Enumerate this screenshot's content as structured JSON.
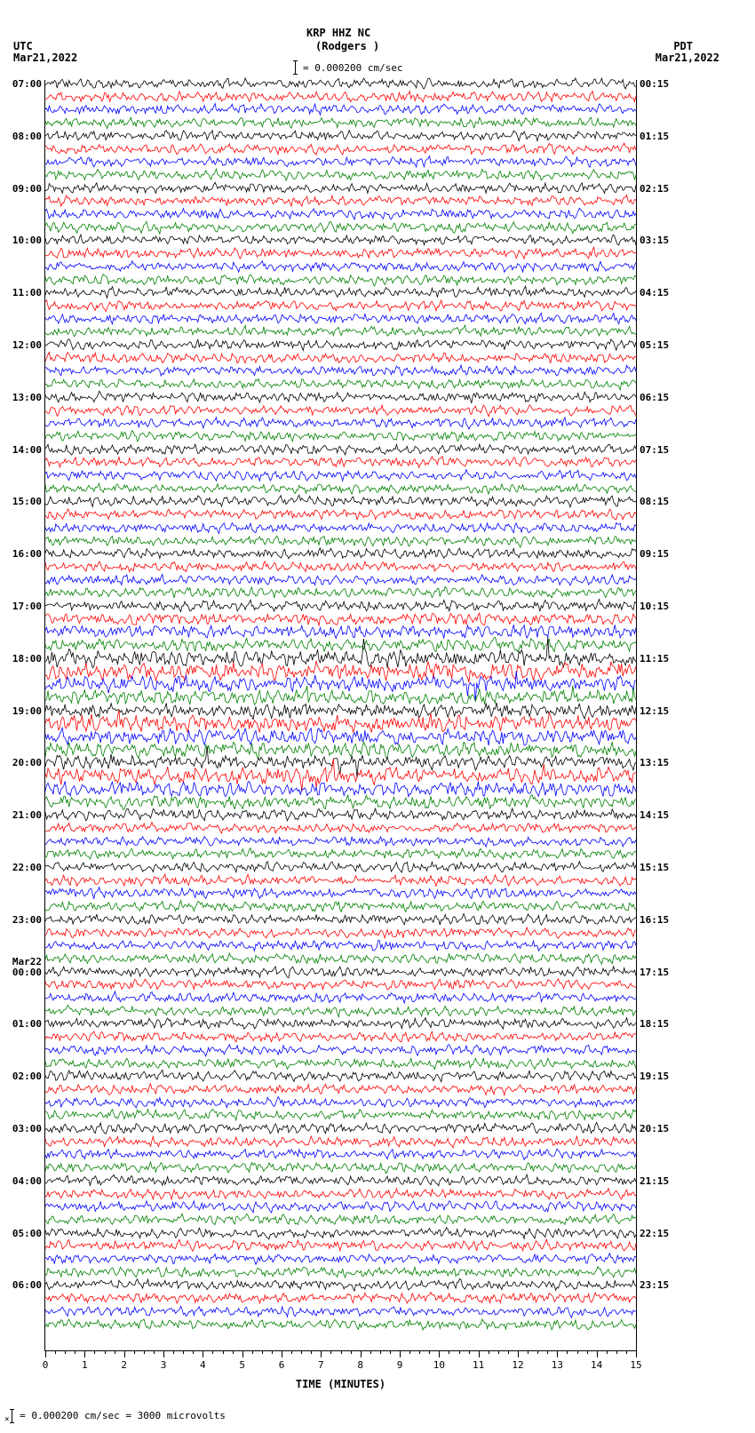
{
  "title": {
    "station": "KRP HHZ NC",
    "location": "(Rodgers )",
    "left_tz": "UTC",
    "left_date": "Mar21,2022",
    "right_tz": "PDT",
    "right_date": "Mar21,2022"
  },
  "scale": {
    "label": "= 0.000200 cm/sec"
  },
  "footer": {
    "text": "= 0.000200 cm/sec =   3000 microvolts"
  },
  "plot": {
    "x_axis_title": "TIME (MINUTES)",
    "x_min": 0,
    "x_max": 15,
    "x_tick_step": 1,
    "x_minor_per_major": 4,
    "n_hours": 24,
    "traces_per_hour": 4,
    "colors": [
      "#000000",
      "#ff0000",
      "#0000ff",
      "#008000"
    ],
    "background": "#ffffff",
    "amplitude_baseline": 6,
    "row_spacing": 14.7
  },
  "left_labels": [
    {
      "row": 0,
      "text": "07:00"
    },
    {
      "row": 4,
      "text": "08:00"
    },
    {
      "row": 8,
      "text": "09:00"
    },
    {
      "row": 12,
      "text": "10:00"
    },
    {
      "row": 16,
      "text": "11:00"
    },
    {
      "row": 20,
      "text": "12:00"
    },
    {
      "row": 24,
      "text": "13:00"
    },
    {
      "row": 28,
      "text": "14:00"
    },
    {
      "row": 32,
      "text": "15:00"
    },
    {
      "row": 36,
      "text": "16:00"
    },
    {
      "row": 40,
      "text": "17:00"
    },
    {
      "row": 44,
      "text": "18:00"
    },
    {
      "row": 48,
      "text": "19:00"
    },
    {
      "row": 52,
      "text": "20:00"
    },
    {
      "row": 56,
      "text": "21:00"
    },
    {
      "row": 60,
      "text": "22:00"
    },
    {
      "row": 64,
      "text": "23:00"
    },
    {
      "row": 68,
      "text": "00:00",
      "date": "Mar22"
    },
    {
      "row": 72,
      "text": "01:00"
    },
    {
      "row": 76,
      "text": "02:00"
    },
    {
      "row": 80,
      "text": "03:00"
    },
    {
      "row": 84,
      "text": "04:00"
    },
    {
      "row": 88,
      "text": "05:00"
    },
    {
      "row": 92,
      "text": "06:00"
    }
  ],
  "right_labels": [
    {
      "row": 0,
      "text": "00:15"
    },
    {
      "row": 4,
      "text": "01:15"
    },
    {
      "row": 8,
      "text": "02:15"
    },
    {
      "row": 12,
      "text": "03:15"
    },
    {
      "row": 16,
      "text": "04:15"
    },
    {
      "row": 20,
      "text": "05:15"
    },
    {
      "row": 24,
      "text": "06:15"
    },
    {
      "row": 28,
      "text": "07:15"
    },
    {
      "row": 32,
      "text": "08:15"
    },
    {
      "row": 36,
      "text": "09:15"
    },
    {
      "row": 40,
      "text": "10:15"
    },
    {
      "row": 44,
      "text": "11:15"
    },
    {
      "row": 48,
      "text": "12:15"
    },
    {
      "row": 52,
      "text": "13:15"
    },
    {
      "row": 56,
      "text": "14:15"
    },
    {
      "row": 60,
      "text": "15:15"
    },
    {
      "row": 64,
      "text": "16:15"
    },
    {
      "row": 68,
      "text": "17:15"
    },
    {
      "row": 72,
      "text": "18:15"
    },
    {
      "row": 76,
      "text": "19:15"
    },
    {
      "row": 80,
      "text": "20:15"
    },
    {
      "row": 84,
      "text": "21:15"
    },
    {
      "row": 88,
      "text": "22:15"
    },
    {
      "row": 92,
      "text": "23:15"
    }
  ],
  "amplitude_profile": [
    1.0,
    1.0,
    1.0,
    1.0,
    1.0,
    1.0,
    1.0,
    1.0,
    1.0,
    1.0,
    1.0,
    1.0,
    1.0,
    1.0,
    1.0,
    1.0,
    1.0,
    1.0,
    1.0,
    1.0,
    1.0,
    1.0,
    1.0,
    1.0,
    1.0,
    1.0,
    1.0,
    1.0,
    1.0,
    1.0,
    1.0,
    1.0,
    1.0,
    1.0,
    1.0,
    1.0,
    1.0,
    1.0,
    1.0,
    1.0,
    1.1,
    1.2,
    1.3,
    1.3,
    1.8,
    1.9,
    1.6,
    1.5,
    1.5,
    1.7,
    1.6,
    1.5,
    1.4,
    1.7,
    1.5,
    1.3,
    1.1,
    1.0,
    1.0,
    1.0,
    1.0,
    1.0,
    1.0,
    1.0,
    1.0,
    1.0,
    1.0,
    1.0,
    1.0,
    1.0,
    1.0,
    1.0,
    1.0,
    1.0,
    1.0,
    1.0,
    1.0,
    1.0,
    1.0,
    1.0,
    1.0,
    1.0,
    1.0,
    1.0,
    1.0,
    1.0,
    1.0,
    1.0,
    1.0,
    1.0,
    1.0,
    1.0,
    1.0,
    1.0,
    1.0,
    1.0
  ]
}
